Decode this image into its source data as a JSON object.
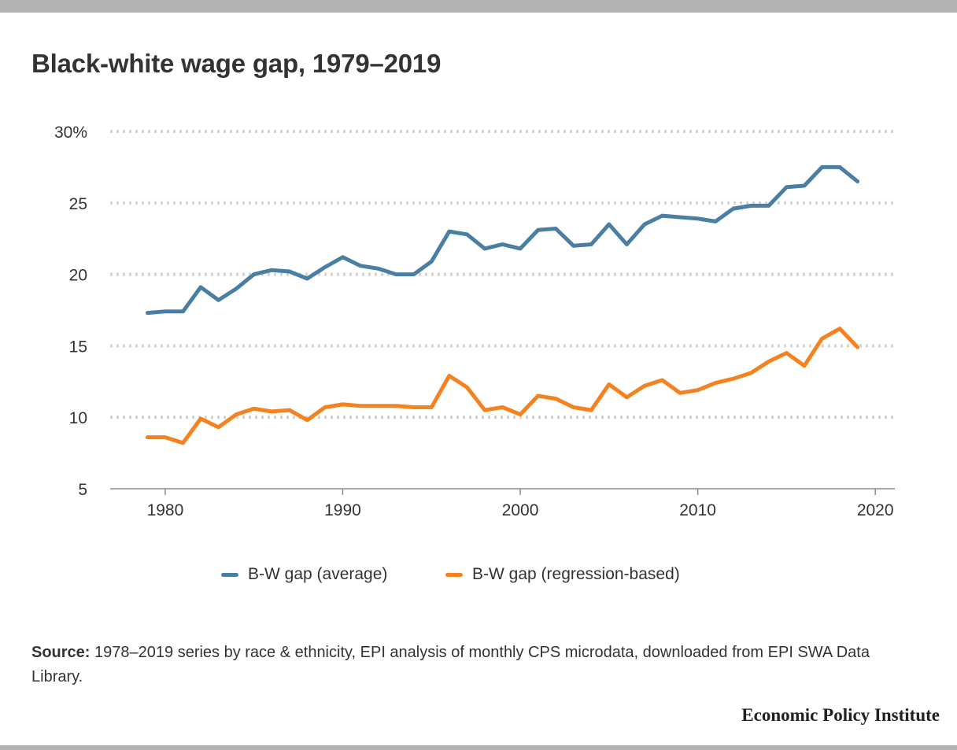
{
  "title": "Black-white wage gap, 1979–2019",
  "chart_data": {
    "type": "line",
    "x": [
      1979,
      1980,
      1981,
      1982,
      1983,
      1984,
      1985,
      1986,
      1987,
      1988,
      1989,
      1990,
      1991,
      1992,
      1993,
      1994,
      1995,
      1996,
      1997,
      1998,
      1999,
      2000,
      2001,
      2002,
      2003,
      2004,
      2005,
      2006,
      2007,
      2008,
      2009,
      2010,
      2011,
      2012,
      2013,
      2014,
      2015,
      2016,
      2017,
      2018,
      2019
    ],
    "series": [
      {
        "name": "B-W gap (average)",
        "color": "#4a7ea3",
        "values": [
          17.3,
          17.4,
          17.4,
          19.1,
          18.2,
          19.0,
          20.0,
          20.3,
          20.2,
          19.7,
          20.5,
          21.2,
          20.6,
          20.4,
          20.0,
          20.0,
          20.9,
          23.0,
          22.8,
          21.8,
          22.1,
          21.8,
          23.1,
          23.2,
          22.0,
          22.1,
          23.5,
          22.1,
          23.5,
          24.1,
          24.0,
          23.9,
          23.7,
          24.6,
          24.8,
          24.8,
          26.1,
          26.2,
          27.5,
          27.5,
          26.5
        ]
      },
      {
        "name": "B-W gap (regression-based)",
        "color": "#f58220",
        "values": [
          8.6,
          8.6,
          8.2,
          9.9,
          9.3,
          10.2,
          10.6,
          10.4,
          10.5,
          9.8,
          10.7,
          10.9,
          10.8,
          10.8,
          10.8,
          10.7,
          10.7,
          12.9,
          12.1,
          10.5,
          10.7,
          10.2,
          11.5,
          11.3,
          10.7,
          10.5,
          12.3,
          11.4,
          12.2,
          12.6,
          11.7,
          11.9,
          12.4,
          12.7,
          13.1,
          13.9,
          14.5,
          13.6,
          15.5,
          16.2,
          14.9
        ]
      }
    ],
    "yticks": [
      "30%",
      "25",
      "20",
      "15",
      "10",
      "5"
    ],
    "ytick_values": [
      30,
      25,
      20,
      15,
      10,
      5
    ],
    "xticks": [
      "1980",
      "1990",
      "2000",
      "2010",
      "2020"
    ],
    "xtick_values": [
      1980,
      1990,
      2000,
      2010,
      2020
    ],
    "xlim": [
      1976.9,
      2021.1
    ],
    "ylim": [
      5,
      30
    ],
    "xlabel": "",
    "ylabel": "",
    "grid": "horizontal dotted",
    "legend_position": "bottom-center"
  },
  "legend": {
    "item1": "B-W gap (average)",
    "item2": "B-W gap (regression-based)"
  },
  "source": {
    "label": "Source:",
    "text": " 1978–2019 series by race & ethnicity, EPI analysis of monthly CPS microdata, downloaded from EPI SWA Data Library."
  },
  "brand": "Economic Policy Institute"
}
